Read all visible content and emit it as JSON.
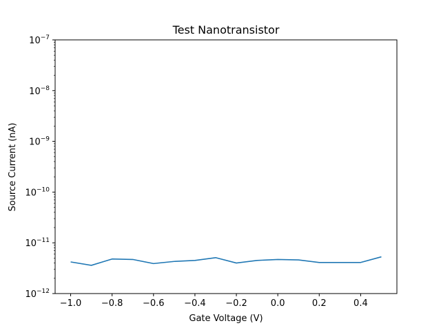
{
  "chart_data": {
    "type": "line",
    "title": "Test Nanotransistor",
    "xlabel": "Gate Voltage (V)",
    "ylabel": "Source Current (nA)",
    "xlim": [
      -1.075,
      0.575
    ],
    "ylim_exp": [
      -12,
      -7
    ],
    "yscale": "log",
    "x_ticks": [
      -1.0,
      -0.8,
      -0.6,
      -0.4,
      -0.2,
      0.0,
      0.2,
      0.4
    ],
    "x_tick_labels": [
      "−1.0",
      "−0.8",
      "−0.6",
      "−0.4",
      "−0.2",
      "0.0",
      "0.2",
      "0.4"
    ],
    "y_tick_exponents": [
      -12,
      -11,
      -10,
      -9,
      -8,
      -7
    ],
    "y_tick_labels": [
      {
        "base": "10",
        "exp": "−12"
      },
      {
        "base": "10",
        "exp": "−11"
      },
      {
        "base": "10",
        "exp": "−10"
      },
      {
        "base": "10",
        "exp": "−9"
      },
      {
        "base": "10",
        "exp": "−8"
      },
      {
        "base": "10",
        "exp": "−7"
      }
    ],
    "series": [
      {
        "name": "Source Current",
        "color": "#1f77b4",
        "x": [
          -1.0,
          -0.9,
          -0.8,
          -0.7,
          -0.6,
          -0.5,
          -0.4,
          -0.3,
          -0.2,
          -0.1,
          0.0,
          0.1,
          0.2,
          0.3,
          0.4,
          0.5
        ],
        "y": [
          4.2e-12,
          3.6e-12,
          4.8e-12,
          4.7e-12,
          3.9e-12,
          4.3e-12,
          4.5e-12,
          5.1e-12,
          4e-12,
          4.5e-12,
          4.7e-12,
          4.6e-12,
          4.1e-12,
          4.1e-12,
          4.1e-12,
          5.3e-12
        ]
      }
    ]
  }
}
